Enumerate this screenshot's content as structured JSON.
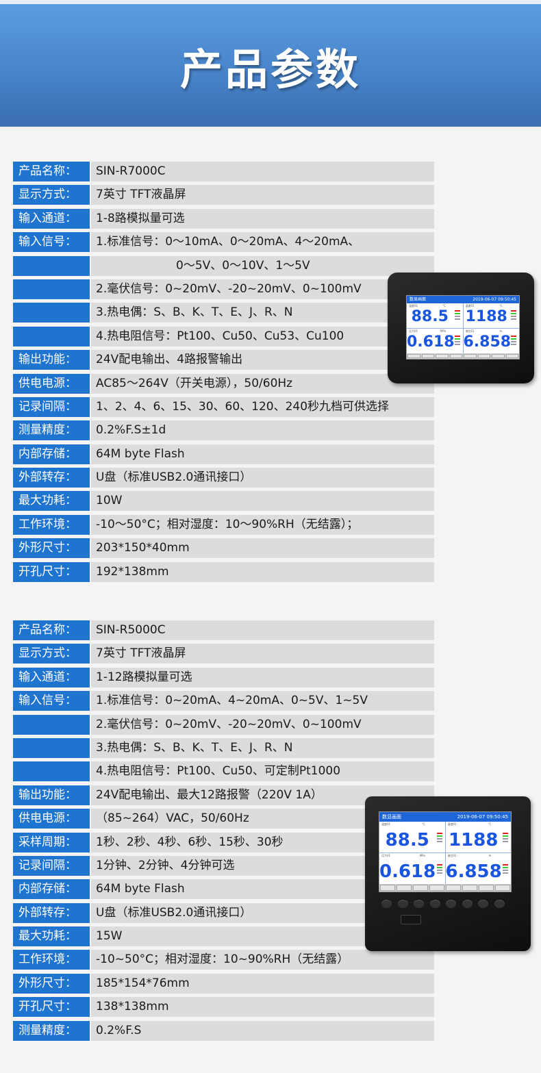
{
  "banner": {
    "title": "产品参数"
  },
  "colors": {
    "label_bg": "#1f74d0",
    "value_bg": "#dcdcdc",
    "banner": "#4a86cc",
    "page_bg": "#f4f4f4"
  },
  "table1": [
    {
      "label": "产品名称：",
      "value": "SIN-R7000C"
    },
    {
      "label": "显示方式：",
      "value": "7英寸 TFT液晶屏"
    },
    {
      "label": "输入通道：",
      "value": "1-8路模拟量可选"
    },
    {
      "label": "输入信号：",
      "value": "1.标准信号：0～10mA、0～20mA、4～20mA、"
    },
    {
      "label": "",
      "value": "0～5V、0～10V、1～5V",
      "indent": true
    },
    {
      "label": "",
      "value": "2.毫伏信号：0~20mV、-20~20mV、0~100mV"
    },
    {
      "label": "",
      "value": "3.热电偶：S、B、K、T、E、J、R、N"
    },
    {
      "label": "",
      "value": "4.热电阻信号：Pt100、Cu50、Cu53、Cu100"
    },
    {
      "label": "输出功能：",
      "value": "24V配电输出、4路报警输出"
    },
    {
      "label": "供电电源：",
      "value": "AC85～264V（开关电源），50/60Hz"
    },
    {
      "label": "记录间隔：",
      "value": "1、2、4、6、15、30、60、120、240秒九档可供选择"
    },
    {
      "label": "测量精度：",
      "value": "0.2%F.S±1d"
    },
    {
      "label": "内部存储：",
      "value": "64M byte Flash"
    },
    {
      "label": "外部转存：",
      "value": "U盘（标准USB2.0通讯接口）"
    },
    {
      "label": "最大功耗：",
      "value": "10W"
    },
    {
      "label": "工作环境：",
      "value": "-10～50°C；相对湿度：10～90%RH（无结露）；"
    },
    {
      "label": "外形尺寸：",
      "value": "203*150*40mm"
    },
    {
      "label": "开孔尺寸：",
      "value": "192*138mm"
    }
  ],
  "table2": [
    {
      "label": "产品名称：",
      "value": "SIN-R5000C"
    },
    {
      "label": "显示方式：",
      "value": "7英寸 TFT液晶屏"
    },
    {
      "label": "输入通道：",
      "value": "1-12路模拟量可选"
    },
    {
      "label": "输入信号：",
      "value": "1.标准信号：0~20mA、4~20mA、0~5V、1~5V"
    },
    {
      "label": "",
      "value": "2.毫伏信号：0~20mV、-20~20mV、0~100mV"
    },
    {
      "label": "",
      "value": "3.热电偶：S、B、K、T、E、J、R、N"
    },
    {
      "label": "",
      "value": "4.热电阻信号：Pt100、Cu50、可定制Pt1000"
    },
    {
      "label": "输出功能：",
      "value": "24V配电输出、最大12路报警（220V 1A）"
    },
    {
      "label": "供电电源：",
      "value": "（85~264）VAC，50/60Hz"
    },
    {
      "label": "采样周期：",
      "value": "1秒、2秒、4秒、6秒、15秒、30秒"
    },
    {
      "label": "记录间隔：",
      "value": "1分钟、2分钟、4分钟可选"
    },
    {
      "label": "内部存储：",
      "value": "64M byte Flash"
    },
    {
      "label": "外部转存：",
      "value": "U盘（标准USB2.0通讯接口）"
    },
    {
      "label": "最大功耗：",
      "value": "15W"
    },
    {
      "label": "工作环境：",
      "value": "-10~50°C；相对湿度：10~90%RH（无结露）"
    },
    {
      "label": "外形尺寸：",
      "value": "185*154*76mm"
    },
    {
      "label": "开孔尺寸：",
      "value": "138*138mm"
    },
    {
      "label": "测量精度：",
      "value": "0.2%F.S"
    }
  ],
  "device_screen": {
    "title": "数显画面",
    "datetime": "2019-06-07  09:50:45",
    "channels": [
      {
        "name": "温度01",
        "unit": "°C",
        "value": "88.5"
      },
      {
        "name": "温度01",
        "unit": "°C",
        "value": "1188"
      },
      {
        "name": "压力01",
        "unit": "MPa",
        "value": "0.618"
      },
      {
        "name": "液位01",
        "unit": "m",
        "value": "6.858"
      }
    ]
  }
}
